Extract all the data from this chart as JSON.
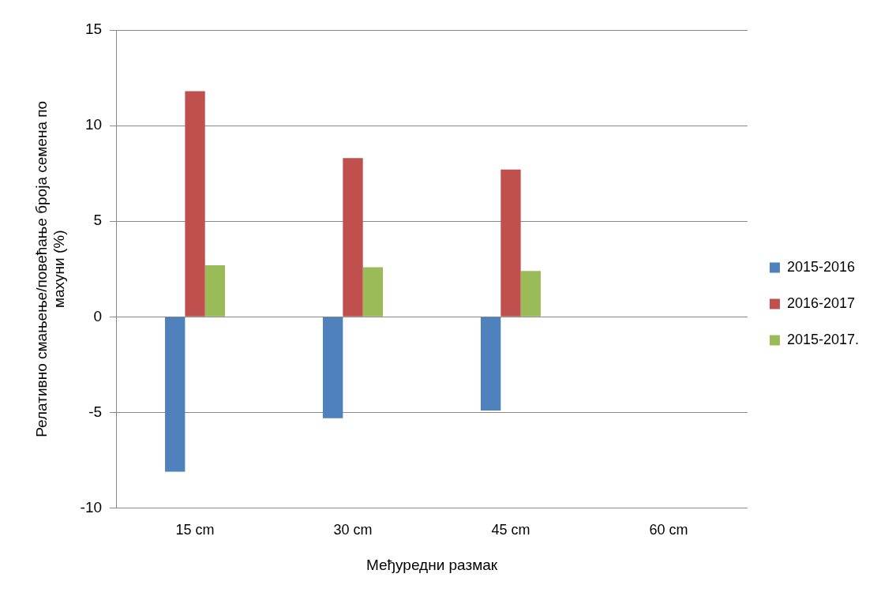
{
  "chart_data": {
    "type": "bar",
    "xlabel": "Међуредни размак",
    "ylabel": "Релативно смањење/повећање броја семена по махуни (%)",
    "categories": [
      "15 cm",
      "30 cm",
      "45 cm",
      "60 cm"
    ],
    "series": [
      {
        "name": "2015-2016",
        "color": "#4f81bd",
        "values": [
          -8.1,
          -5.3,
          -4.9,
          null
        ]
      },
      {
        "name": "2016-2017",
        "color": "#c0504d",
        "values": [
          11.8,
          8.3,
          7.7,
          null
        ]
      },
      {
        "name": "2015-2017.",
        "color": "#9bbb59",
        "values": [
          2.7,
          2.6,
          2.4,
          null
        ]
      }
    ],
    "ylim": [
      -10,
      15
    ],
    "yticks": [
      -10,
      -5,
      0,
      5,
      10,
      15
    ],
    "grid": "y",
    "legend": "right"
  }
}
